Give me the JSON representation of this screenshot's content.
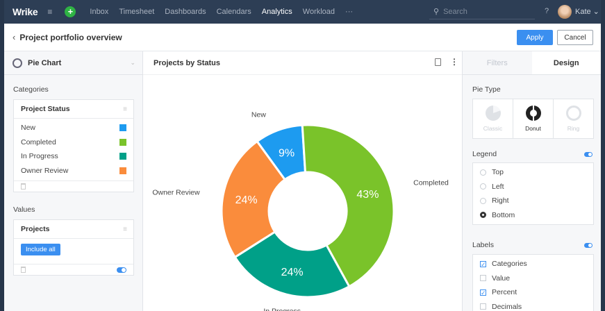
{
  "app": {
    "logo": "Wrike",
    "nav": [
      "Inbox",
      "Timesheet",
      "Dashboards",
      "Calendars",
      "Analytics",
      "Workload",
      "···"
    ],
    "active_nav": "Analytics",
    "search_placeholder": "Search",
    "help": "?",
    "user": "Kate ⌄"
  },
  "header": {
    "title": "Project portfolio overview",
    "apply": "Apply",
    "cancel": "Cancel"
  },
  "left": {
    "chart_type": "Pie Chart",
    "categories_label": "Categories",
    "categories_card_title": "Project Status",
    "categories": [
      {
        "name": "New",
        "color": "#1d9bf0"
      },
      {
        "name": "Completed",
        "color": "#7ac32a"
      },
      {
        "name": "In Progress",
        "color": "#00a088"
      },
      {
        "name": "Owner Review",
        "color": "#fa8c3c"
      }
    ],
    "values_label": "Values",
    "values_card_title": "Projects",
    "include_all": "Include all"
  },
  "center": {
    "title": "Projects by Status"
  },
  "chart_data": {
    "type": "pie",
    "categories": [
      "New",
      "Completed",
      "In Progress",
      "Owner Review"
    ],
    "values": [
      9,
      43,
      24,
      24
    ],
    "labels": [
      "9%",
      "43%",
      "24%",
      "24%"
    ],
    "colors": [
      "#1d9bf0",
      "#7ac32a",
      "#00a088",
      "#fa8c3c"
    ],
    "donut": true
  },
  "right": {
    "tabs": [
      "Filters",
      "Design"
    ],
    "active_tab": "Design",
    "pie_type_label": "Pie Type",
    "pie_types": [
      "Classic",
      "Donut",
      "Ring"
    ],
    "selected_pie_type": "Donut",
    "legend_label": "Legend",
    "legend_options": [
      "Top",
      "Left",
      "Right",
      "Bottom"
    ],
    "legend_selected": "Bottom",
    "labels_label": "Labels",
    "label_options": [
      {
        "name": "Categories",
        "checked": true
      },
      {
        "name": "Value",
        "checked": false
      },
      {
        "name": "Percent",
        "checked": true
      },
      {
        "name": "Decimals",
        "checked": false
      }
    ]
  }
}
